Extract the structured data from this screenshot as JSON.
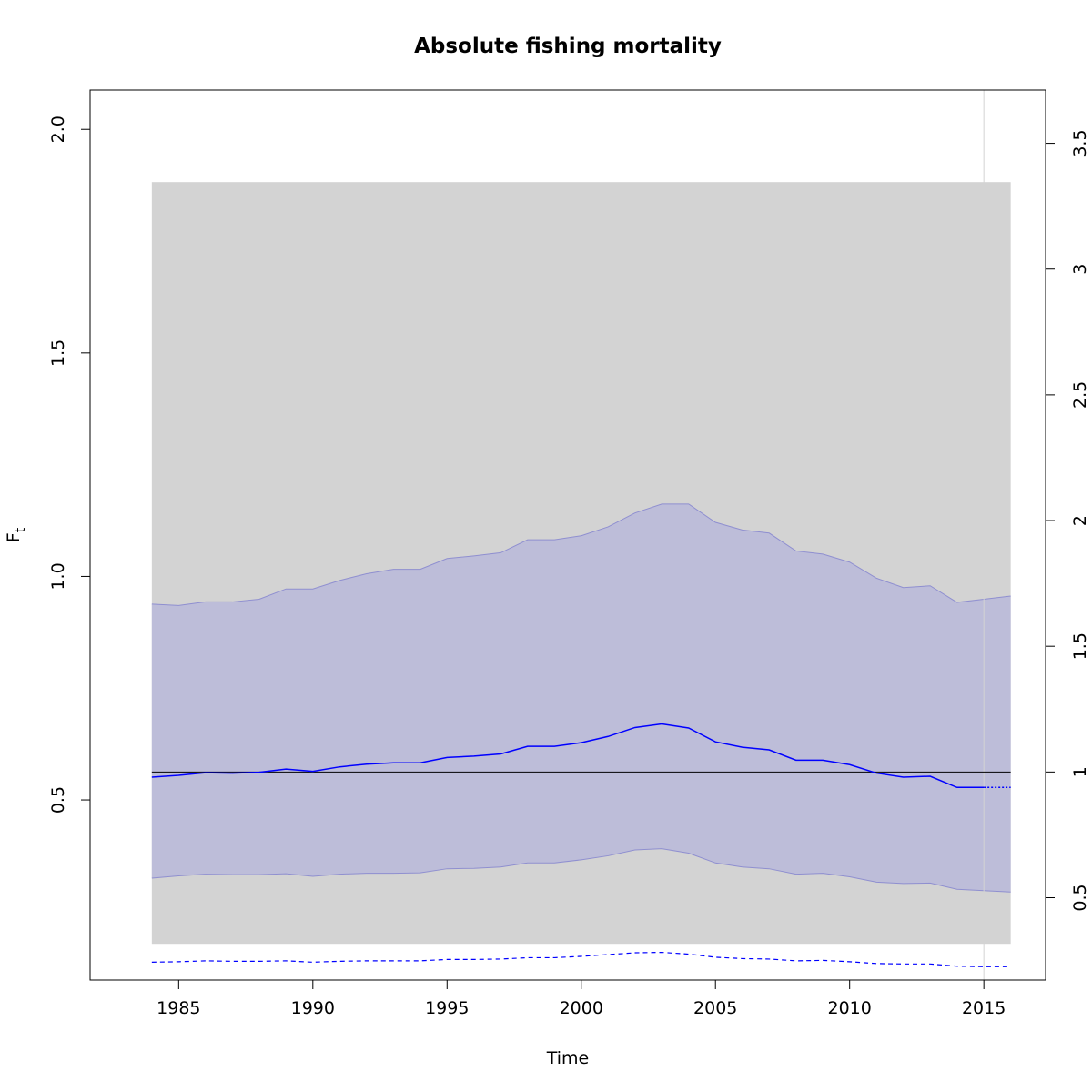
{
  "chart_data": {
    "type": "line",
    "title": "Absolute fishing mortality",
    "xlabel": "Time",
    "ylabel": "F",
    "ylabel_subscript": "t",
    "xlim": [
      1981.7,
      2017.3
    ],
    "ylim": [
      0.097,
      2.088
    ],
    "right_axis": {
      "description": "relative scale (F / reference)",
      "ticks": [
        0.5,
        1,
        1.5,
        2,
        2.5,
        3,
        3.5
      ],
      "tick_labels": [
        "0.5",
        "1",
        "1.5",
        "2",
        "2.5",
        "3",
        "3.5"
      ],
      "scale_factor": 0.5625
    },
    "x_ticks": [
      1985,
      1990,
      1995,
      2000,
      2005,
      2010,
      2015
    ],
    "x_tick_labels": [
      "1985",
      "1990",
      "1995",
      "2000",
      "2005",
      "2010",
      "2015"
    ],
    "y_ticks": [
      0.5,
      1.0,
      1.5,
      2.0
    ],
    "y_tick_labels": [
      "0.5",
      "1.0",
      "1.5",
      "2.0"
    ],
    "reference_line": {
      "value": 0.5625,
      "color": "#000000"
    },
    "vertical_line": {
      "x": 2015,
      "color": "#d3d3d3"
    },
    "outer_band": {
      "x_range": [
        1984,
        2016
      ],
      "y_range": [
        0.178,
        1.882
      ],
      "color": "#d3d3d3"
    },
    "colors": {
      "ci_band": "#bdbdd9",
      "ci_band_edge": "#8f8fd0",
      "line": "#0000ff",
      "background": "#ffffff"
    },
    "years": [
      1984,
      1985,
      1986,
      1987,
      1988,
      1989,
      1990,
      1991,
      1992,
      1993,
      1994,
      1995,
      1996,
      1997,
      1998,
      1999,
      2000,
      2001,
      2002,
      2003,
      2004,
      2005,
      2006,
      2007,
      2008,
      2009,
      2010,
      2011,
      2012,
      2013,
      2014,
      2015,
      2016
    ],
    "series": [
      {
        "role": "estimate",
        "style": "solid",
        "values": [
          0.551,
          0.555,
          0.561,
          0.56,
          0.562,
          0.569,
          0.564,
          0.574,
          0.58,
          0.583,
          0.583,
          0.595,
          0.598,
          0.603,
          0.62,
          0.62,
          0.628,
          0.642,
          0.662,
          0.67,
          0.661,
          0.63,
          0.618,
          0.612,
          0.589,
          0.589,
          0.579,
          0.56,
          0.551,
          0.553,
          0.528,
          0.528,
          null
        ]
      },
      {
        "role": "prediction",
        "style": "dotted",
        "x": [
          2015,
          2016
        ],
        "values": [
          0.528,
          0.528
        ]
      },
      {
        "role": "upper_ci",
        "values": [
          0.938,
          0.935,
          0.943,
          0.943,
          0.949,
          0.972,
          0.972,
          0.991,
          1.006,
          1.016,
          1.016,
          1.04,
          1.046,
          1.053,
          1.082,
          1.082,
          1.091,
          1.111,
          1.142,
          1.162,
          1.162,
          1.121,
          1.104,
          1.097,
          1.057,
          1.05,
          1.032,
          0.996,
          0.975,
          0.979,
          0.942,
          0.949,
          0.956
        ]
      },
      {
        "role": "lower_ci",
        "values": [
          0.325,
          0.33,
          0.334,
          0.333,
          0.333,
          0.335,
          0.329,
          0.334,
          0.336,
          0.336,
          0.337,
          0.346,
          0.347,
          0.35,
          0.359,
          0.359,
          0.366,
          0.375,
          0.388,
          0.391,
          0.381,
          0.359,
          0.35,
          0.346,
          0.334,
          0.336,
          0.328,
          0.316,
          0.313,
          0.314,
          0.3,
          0.297,
          0.294
        ]
      },
      {
        "role": "lower_reference",
        "style": "dashed",
        "values": [
          0.137,
          0.138,
          0.14,
          0.139,
          0.139,
          0.14,
          0.137,
          0.139,
          0.14,
          0.14,
          0.14,
          0.143,
          0.143,
          0.144,
          0.147,
          0.147,
          0.15,
          0.154,
          0.158,
          0.159,
          0.155,
          0.148,
          0.145,
          0.144,
          0.14,
          0.141,
          0.138,
          0.134,
          0.133,
          0.133,
          0.128,
          0.127,
          0.127
        ]
      }
    ]
  }
}
